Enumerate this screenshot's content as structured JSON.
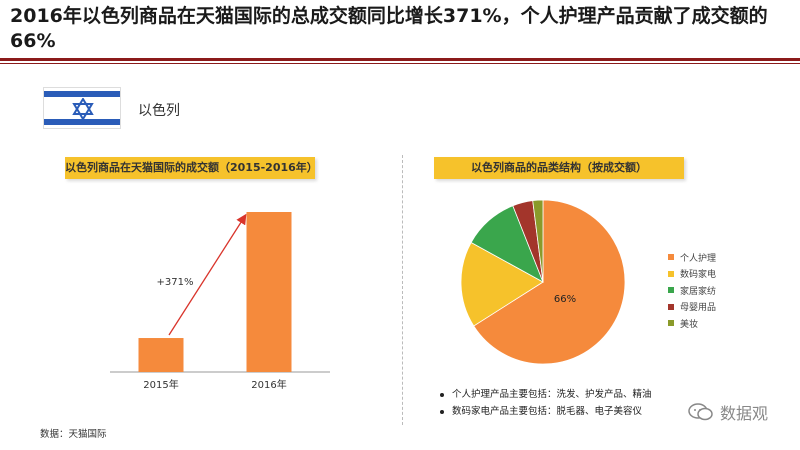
{
  "page": {
    "title": "2016年以色列商品在天猫国际的总成交额同比增长371%，个人护理产品贡献了成交额的66%",
    "country": "以色列",
    "source": "数据：天猫国际",
    "watermark": "数据观"
  },
  "colors": {
    "accent": "#8b1a1a",
    "header_bg": "#f6c22b",
    "flag_blue": "#2a5cb8"
  },
  "icons": {
    "flag": "israel-flag-icon",
    "watermark": "wechat-icon"
  },
  "chart_data": [
    {
      "type": "bar",
      "title": "以色列商品在天猫国际的成交额（2015-2016年）",
      "categories": [
        "2015年",
        "2016年"
      ],
      "values": [
        1,
        4.71
      ],
      "annotation": "+371%",
      "bar_color": "#f58a3c"
    },
    {
      "type": "pie",
      "title": "以色列商品的品类结构（按成交额）",
      "labels": [
        "个人护理",
        "数码家电",
        "家居家纺",
        "母婴用品",
        "美妆"
      ],
      "values": [
        66,
        17,
        11,
        4,
        2
      ],
      "colors": [
        "#f58a3c",
        "#f6c22b",
        "#3aa64c",
        "#a3352b",
        "#8a9a2a"
      ],
      "data_labels": [
        "66%"
      ]
    }
  ],
  "notes": [
    "个人护理产品主要包括：洗发、护发产品、精油",
    "数码家电产品主要包括：脱毛器、电子美容仪"
  ]
}
